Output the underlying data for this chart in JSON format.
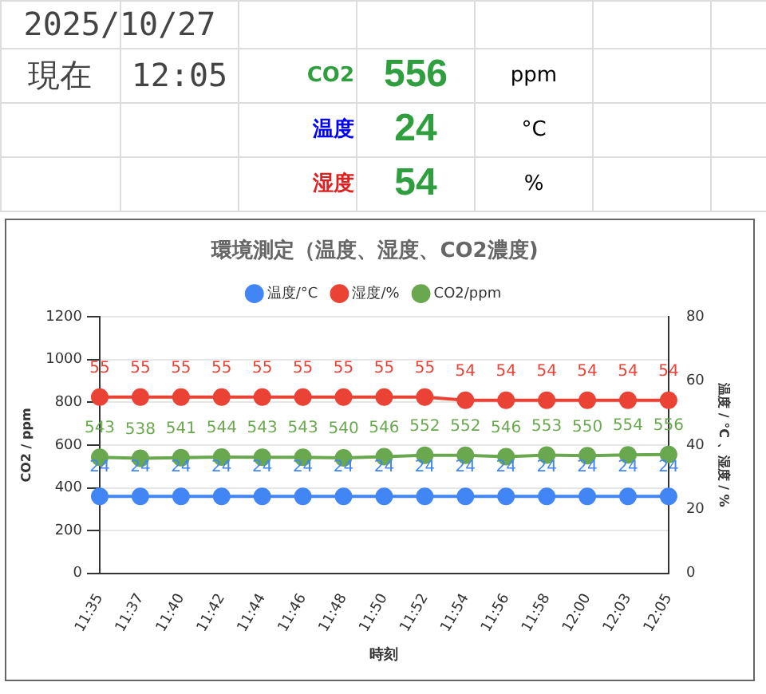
{
  "chart_data": {
    "type": "line",
    "title": "環境測定（温度、湿度、CO2濃度)",
    "xlabel": "時刻",
    "ylabel": "CO2 / ppm",
    "y2label": "温度 / °C 、湿度 / %",
    "categories": [
      "11:35",
      "11:37",
      "11:40",
      "11:42",
      "11:44",
      "11:46",
      "11:48",
      "11:50",
      "11:52",
      "11:54",
      "11:56",
      "11:58",
      "12:00",
      "12:03",
      "12:05"
    ],
    "series": [
      {
        "name": "温度/°C",
        "color": "#4285f4",
        "axis": "y2",
        "values": [
          24,
          24,
          24,
          24,
          24,
          24,
          24,
          24,
          24,
          24,
          24,
          24,
          24,
          24,
          24
        ]
      },
      {
        "name": "湿度/%",
        "color": "#ea4335",
        "axis": "y2",
        "values": [
          55,
          55,
          55,
          55,
          55,
          55,
          55,
          55,
          55,
          54,
          54,
          54,
          54,
          54,
          54
        ]
      },
      {
        "name": "CO2/ppm",
        "color": "#6aa84f",
        "values": [
          543,
          538,
          541,
          544,
          543,
          543,
          540,
          546,
          552,
          552,
          546,
          553,
          550,
          554,
          556
        ]
      }
    ],
    "ylim": [
      0,
      1200
    ],
    "yticks": [
      0,
      200,
      400,
      600,
      800,
      1000,
      1200
    ],
    "y2lim": [
      0,
      80
    ],
    "y2ticks": [
      0,
      20,
      40,
      60,
      80
    ],
    "grid": "y",
    "legend": "top",
    "marker": "circle",
    "line_style": "solid",
    "data_labels": true,
    "annotations": [
      "2025/10/27",
      "現在",
      "12:05",
      "CO2",
      "556",
      "ppm",
      "温度",
      "24",
      "°C",
      "湿度",
      "54",
      "%"
    ]
  }
}
